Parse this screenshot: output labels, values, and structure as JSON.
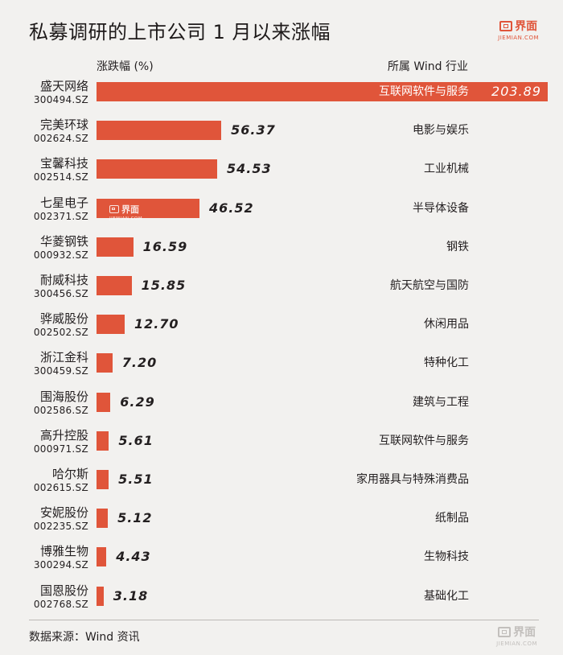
{
  "header": {
    "title": "私募调研的上市公司 1 月以来涨幅",
    "logo_text": "界面",
    "logo_sub": "JIEMIAN.COM",
    "col_left": "涨跌幅 (%)",
    "col_right": "所属 Wind 行业"
  },
  "footer": {
    "source": "数据来源：Wind 资讯",
    "logo_text": "界面",
    "logo_sub": "JIEMIAN.COM"
  },
  "colors": {
    "bar": "#e0553a",
    "background": "#f2f1ef"
  },
  "chart_data": {
    "type": "bar",
    "orientation": "horizontal",
    "categories": [
      "盛天网络",
      "完美环球",
      "宝馨科技",
      "七星电子",
      "华菱钢铁",
      "耐威科技",
      "骅威股份",
      "浙江金科",
      "围海股份",
      "高升控股",
      "哈尔斯",
      "安妮股份",
      "博雅生物",
      "国恩股份"
    ],
    "codes": [
      "300494.SZ",
      "002624.SZ",
      "002514.SZ",
      "002371.SZ",
      "000932.SZ",
      "300456.SZ",
      "002502.SZ",
      "300459.SZ",
      "002586.SZ",
      "000971.SZ",
      "002615.SZ",
      "002235.SZ",
      "300294.SZ",
      "002768.SZ"
    ],
    "values": [
      203.89,
      56.37,
      54.53,
      46.52,
      16.59,
      15.85,
      12.7,
      7.2,
      6.29,
      5.61,
      5.51,
      5.12,
      4.43,
      3.18
    ],
    "value_labels": [
      "203.89",
      "56.37",
      "54.53",
      "46.52",
      "16.59",
      "15.85",
      "12.70",
      "7.20",
      "6.29",
      "5.61",
      "5.51",
      "5.12",
      "4.43",
      "3.18"
    ],
    "industries": [
      "互联网软件与服务",
      "电影与娱乐",
      "工业机械",
      "半导体设备",
      "钢铁",
      "航天航空与国防",
      "休闲用品",
      "特种化工",
      "建筑与工程",
      "互联网软件与服务",
      "家用器具与特殊消费品",
      "纸制品",
      "生物科技",
      "基础化工"
    ],
    "title": "私募调研的上市公司 1 月以来涨幅",
    "xlabel": "涨跌幅 (%)",
    "ylabel": "",
    "xlim": [
      0,
      203.89
    ]
  }
}
